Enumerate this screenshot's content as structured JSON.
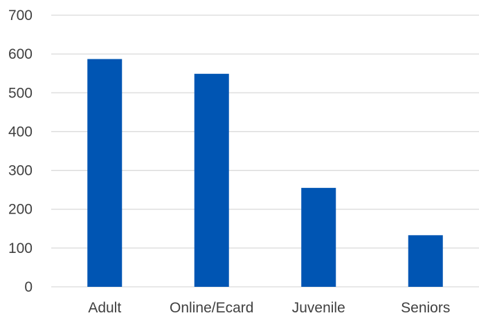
{
  "chart_data": {
    "type": "bar",
    "categories": [
      "Adult",
      "Online/Ecard",
      "Juvenile",
      "Seniors"
    ],
    "values": [
      587,
      549,
      255,
      133
    ],
    "ylim": [
      0,
      700
    ],
    "yticks": [
      0,
      100,
      200,
      300,
      400,
      500,
      600,
      700
    ],
    "grid": true,
    "legend": "none",
    "colors": {
      "bar": "#0055b3",
      "grid": "#d9d9d9",
      "text": "#404040"
    }
  }
}
